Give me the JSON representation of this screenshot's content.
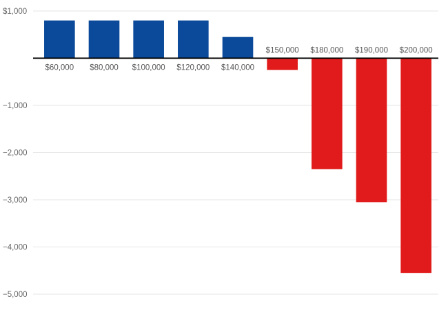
{
  "chart_data": {
    "type": "bar",
    "categories": [
      "$60,000",
      "$80,000",
      "$100,000",
      "$120,000",
      "$140,000",
      "$150,000",
      "$180,000",
      "$190,000",
      "$200,000"
    ],
    "values": [
      800,
      800,
      800,
      800,
      450,
      -250,
      -2350,
      -3050,
      -4550
    ],
    "ylim": [
      -5000,
      1000
    ],
    "yticks": [
      1000,
      0,
      -1000,
      -2000,
      -3000,
      -4000,
      -5000
    ],
    "ytick_labels": [
      "$1,000",
      "",
      "−1,000",
      "−2,000",
      "−3,000",
      "−4,000",
      "−5,000"
    ],
    "grid": true,
    "colors": {
      "positive": "#0b4a9a",
      "negative": "#e11b1b",
      "grid": "#e6e6e6",
      "baseline": "#000000"
    }
  }
}
